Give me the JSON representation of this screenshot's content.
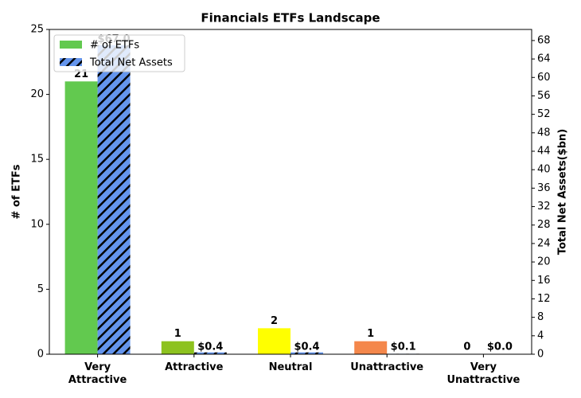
{
  "chart_data": {
    "type": "bar",
    "title": "Financials ETFs Landscape",
    "categories": [
      "Very\nAttractive",
      "Attractive",
      "Neutral",
      "Unattractive",
      "Very\nUnattractive"
    ],
    "series": [
      {
        "name": "# of ETFs",
        "color": "#62c94f",
        "colors": [
          "#62c94f",
          "#8dc21f",
          "#ffff00",
          "#f4874b",
          "#e8453c"
        ],
        "values": [
          21,
          1,
          2,
          1,
          0
        ]
      },
      {
        "name": "Total Net Assets",
        "color": "#6495ed",
        "hatch": true,
        "axis": "y2",
        "values": [
          67.0,
          0.4,
          0.4,
          0.1,
          0.0
        ],
        "value_labels": [
          "$67.0",
          "$0.4",
          "$0.4",
          "$0.1",
          "$0.0"
        ]
      }
    ],
    "y_label": "# of ETFs",
    "y2_label": "Total Net Assets($bn)",
    "ylim": [
      0,
      25
    ],
    "yticks": [
      0,
      5,
      10,
      15,
      20,
      25
    ],
    "y2lim": [
      0,
      70.4
    ],
    "y2ticks": [
      0,
      4,
      8,
      12,
      16,
      20,
      24,
      28,
      32,
      36,
      40,
      44,
      48,
      52,
      56,
      60,
      64,
      68
    ],
    "legend": "upper left"
  }
}
